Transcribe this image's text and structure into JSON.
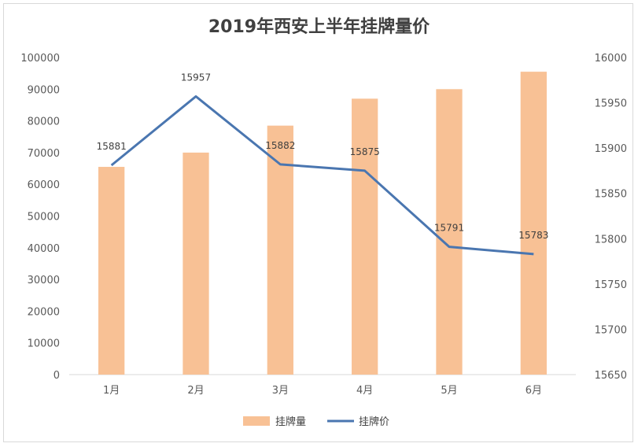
{
  "chart_data": {
    "type": "bar",
    "title": "2019年西安上半年挂牌量价",
    "categories": [
      "1月",
      "2月",
      "3月",
      "4月",
      "5月",
      "6月"
    ],
    "series": [
      {
        "name": "挂牌量",
        "type": "bar",
        "axis": "left",
        "color": "#F8C195",
        "values": [
          65500,
          70000,
          78500,
          87000,
          90000,
          95500
        ]
      },
      {
        "name": "挂牌价",
        "type": "line",
        "axis": "right",
        "color": "#4A76B0",
        "values": [
          15881,
          15957,
          15882,
          15875,
          15791,
          15783
        ],
        "data_labels": [
          "15881",
          "15957",
          "15882",
          "15875",
          "15791",
          "15783"
        ]
      }
    ],
    "y_left": {
      "min": 0,
      "max": 100000,
      "step": 10000
    },
    "y_right": {
      "min": 15650,
      "max": 16000,
      "step": 50
    },
    "legend_position": "bottom",
    "grid": false
  }
}
